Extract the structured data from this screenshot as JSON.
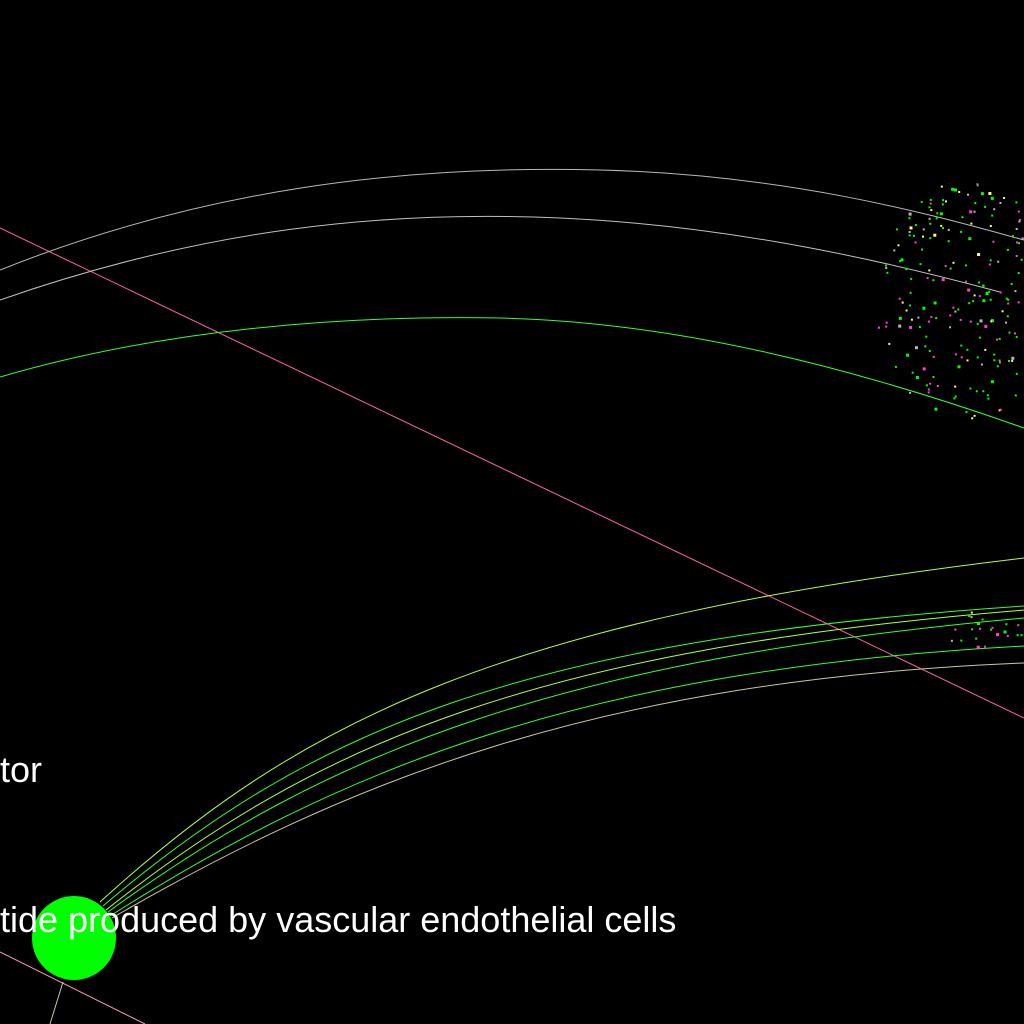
{
  "labels": {
    "partial_top": "tor",
    "partial_bottom": "tide produced by vascular endothelial cells"
  },
  "colors": {
    "background": "#000000",
    "label_text": "#ffffff",
    "main_node": "#00ff00",
    "edge_green": "#33ff33",
    "edge_gray": "#b8b8b8",
    "edge_yellowgreen": "#b4ff3c",
    "edge_pink": "#ff66aa",
    "dot_green": "#00ff00",
    "dot_pink": "#ff44cc",
    "dot_yellow": "#ffff66"
  }
}
